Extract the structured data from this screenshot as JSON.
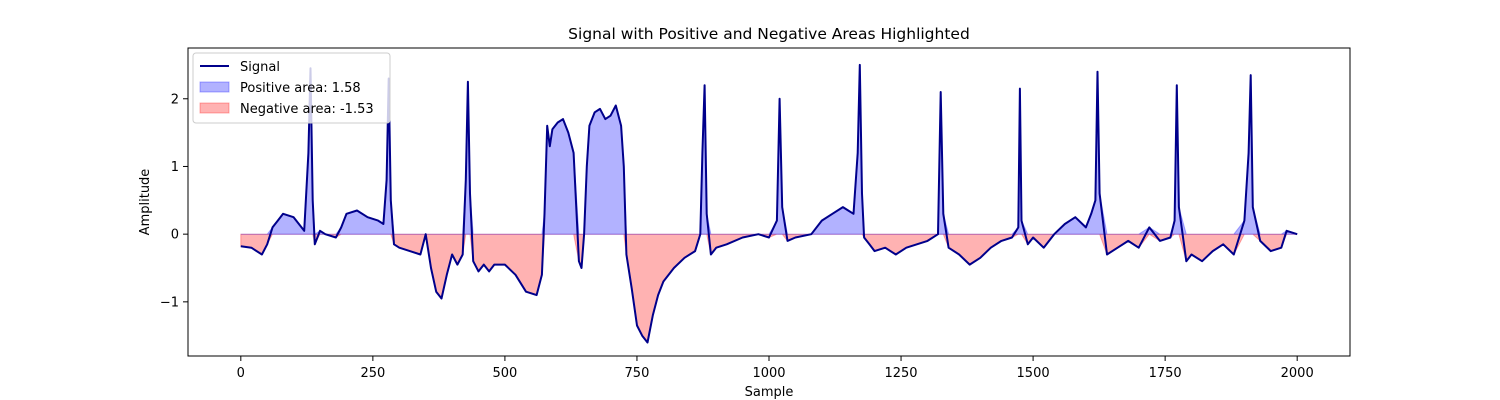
{
  "chart_data": {
    "type": "line",
    "title": "Signal with Positive and Negative Areas Highlighted",
    "xlabel": "Sample",
    "ylabel": "Amplitude",
    "xlim": [
      -100,
      2100
    ],
    "ylim": [
      -1.8,
      2.75
    ],
    "xticks": [
      0,
      250,
      500,
      750,
      1000,
      1250,
      1500,
      1750,
      2000
    ],
    "yticks": [
      -1,
      0,
      1,
      2
    ],
    "grid": false,
    "legend_position": "top-left",
    "colors": {
      "line": "#00008b",
      "positive": "#0000ff",
      "negative": "#ff0000"
    },
    "series": [
      {
        "name": "Signal",
        "x": [
          0,
          20,
          40,
          50,
          60,
          70,
          80,
          100,
          110,
          120,
          128,
          132,
          136,
          140,
          150,
          160,
          180,
          190,
          200,
          220,
          240,
          260,
          270,
          276,
          280,
          284,
          290,
          300,
          320,
          340,
          350,
          360,
          370,
          380,
          390,
          400,
          410,
          420,
          426,
          430,
          434,
          440,
          450,
          460,
          470,
          480,
          500,
          520,
          540,
          560,
          570,
          575,
          580,
          585,
          590,
          600,
          610,
          620,
          630,
          640,
          645,
          650,
          655,
          660,
          670,
          680,
          690,
          700,
          710,
          720,
          725,
          730,
          740,
          750,
          760,
          770,
          780,
          790,
          800,
          820,
          840,
          860,
          870,
          874,
          878,
          882,
          890,
          900,
          920,
          950,
          980,
          1000,
          1015,
          1020,
          1025,
          1035,
          1050,
          1080,
          1100,
          1120,
          1140,
          1150,
          1160,
          1168,
          1172,
          1176,
          1180,
          1190,
          1200,
          1220,
          1240,
          1260,
          1280,
          1300,
          1320,
          1325,
          1330,
          1340,
          1360,
          1380,
          1400,
          1420,
          1440,
          1460,
          1472,
          1475,
          1478,
          1490,
          1500,
          1520,
          1540,
          1560,
          1580,
          1600,
          1610,
          1618,
          1622,
          1626,
          1640,
          1660,
          1680,
          1700,
          1720,
          1740,
          1760,
          1768,
          1772,
          1776,
          1790,
          1800,
          1820,
          1840,
          1860,
          1880,
          1900,
          1908,
          1912,
          1916,
          1930,
          1950,
          1970,
          1980,
          2000
        ],
        "values": [
          -0.18,
          -0.2,
          -0.3,
          -0.15,
          0.1,
          0.2,
          0.3,
          0.25,
          0.15,
          0.05,
          1.2,
          2.45,
          0.5,
          -0.15,
          0.05,
          0.0,
          -0.05,
          0.1,
          0.3,
          0.35,
          0.25,
          0.2,
          0.15,
          0.8,
          2.3,
          0.5,
          -0.15,
          -0.2,
          -0.25,
          -0.3,
          0.0,
          -0.5,
          -0.85,
          -0.95,
          -0.6,
          -0.3,
          -0.45,
          -0.3,
          0.8,
          2.25,
          0.6,
          -0.4,
          -0.55,
          -0.45,
          -0.55,
          -0.45,
          -0.45,
          -0.6,
          -0.85,
          -0.9,
          -0.6,
          0.3,
          1.6,
          1.3,
          1.55,
          1.65,
          1.7,
          1.5,
          1.2,
          -0.4,
          -0.5,
          0.0,
          1.0,
          1.6,
          1.8,
          1.85,
          1.7,
          1.75,
          1.9,
          1.6,
          1.0,
          -0.3,
          -0.8,
          -1.35,
          -1.5,
          -1.6,
          -1.2,
          -0.9,
          -0.7,
          -0.5,
          -0.35,
          -0.25,
          0.0,
          1.2,
          2.2,
          0.3,
          -0.3,
          -0.2,
          -0.15,
          -0.05,
          0.0,
          -0.05,
          0.2,
          2.0,
          0.4,
          -0.1,
          -0.05,
          0.0,
          0.2,
          0.3,
          0.4,
          0.35,
          0.3,
          1.2,
          2.5,
          0.6,
          -0.05,
          -0.15,
          -0.25,
          -0.2,
          -0.3,
          -0.2,
          -0.15,
          -0.1,
          0.0,
          2.1,
          0.3,
          -0.2,
          -0.3,
          -0.45,
          -0.35,
          -0.2,
          -0.1,
          -0.05,
          0.1,
          2.15,
          0.2,
          -0.15,
          -0.05,
          -0.2,
          0.0,
          0.15,
          0.25,
          0.1,
          0.3,
          0.5,
          2.4,
          0.6,
          -0.3,
          -0.2,
          -0.1,
          -0.2,
          0.1,
          -0.1,
          -0.05,
          0.2,
          2.2,
          0.4,
          -0.4,
          -0.3,
          -0.4,
          -0.25,
          -0.15,
          -0.3,
          0.2,
          1.2,
          2.35,
          0.4,
          -0.1,
          -0.25,
          -0.2,
          0.05,
          0.0
        ]
      }
    ],
    "legend": [
      {
        "label": "Signal",
        "kind": "line"
      },
      {
        "label": "Positive area: 1.58",
        "kind": "positive"
      },
      {
        "label": "Negative area: -1.53",
        "kind": "negative"
      }
    ]
  }
}
